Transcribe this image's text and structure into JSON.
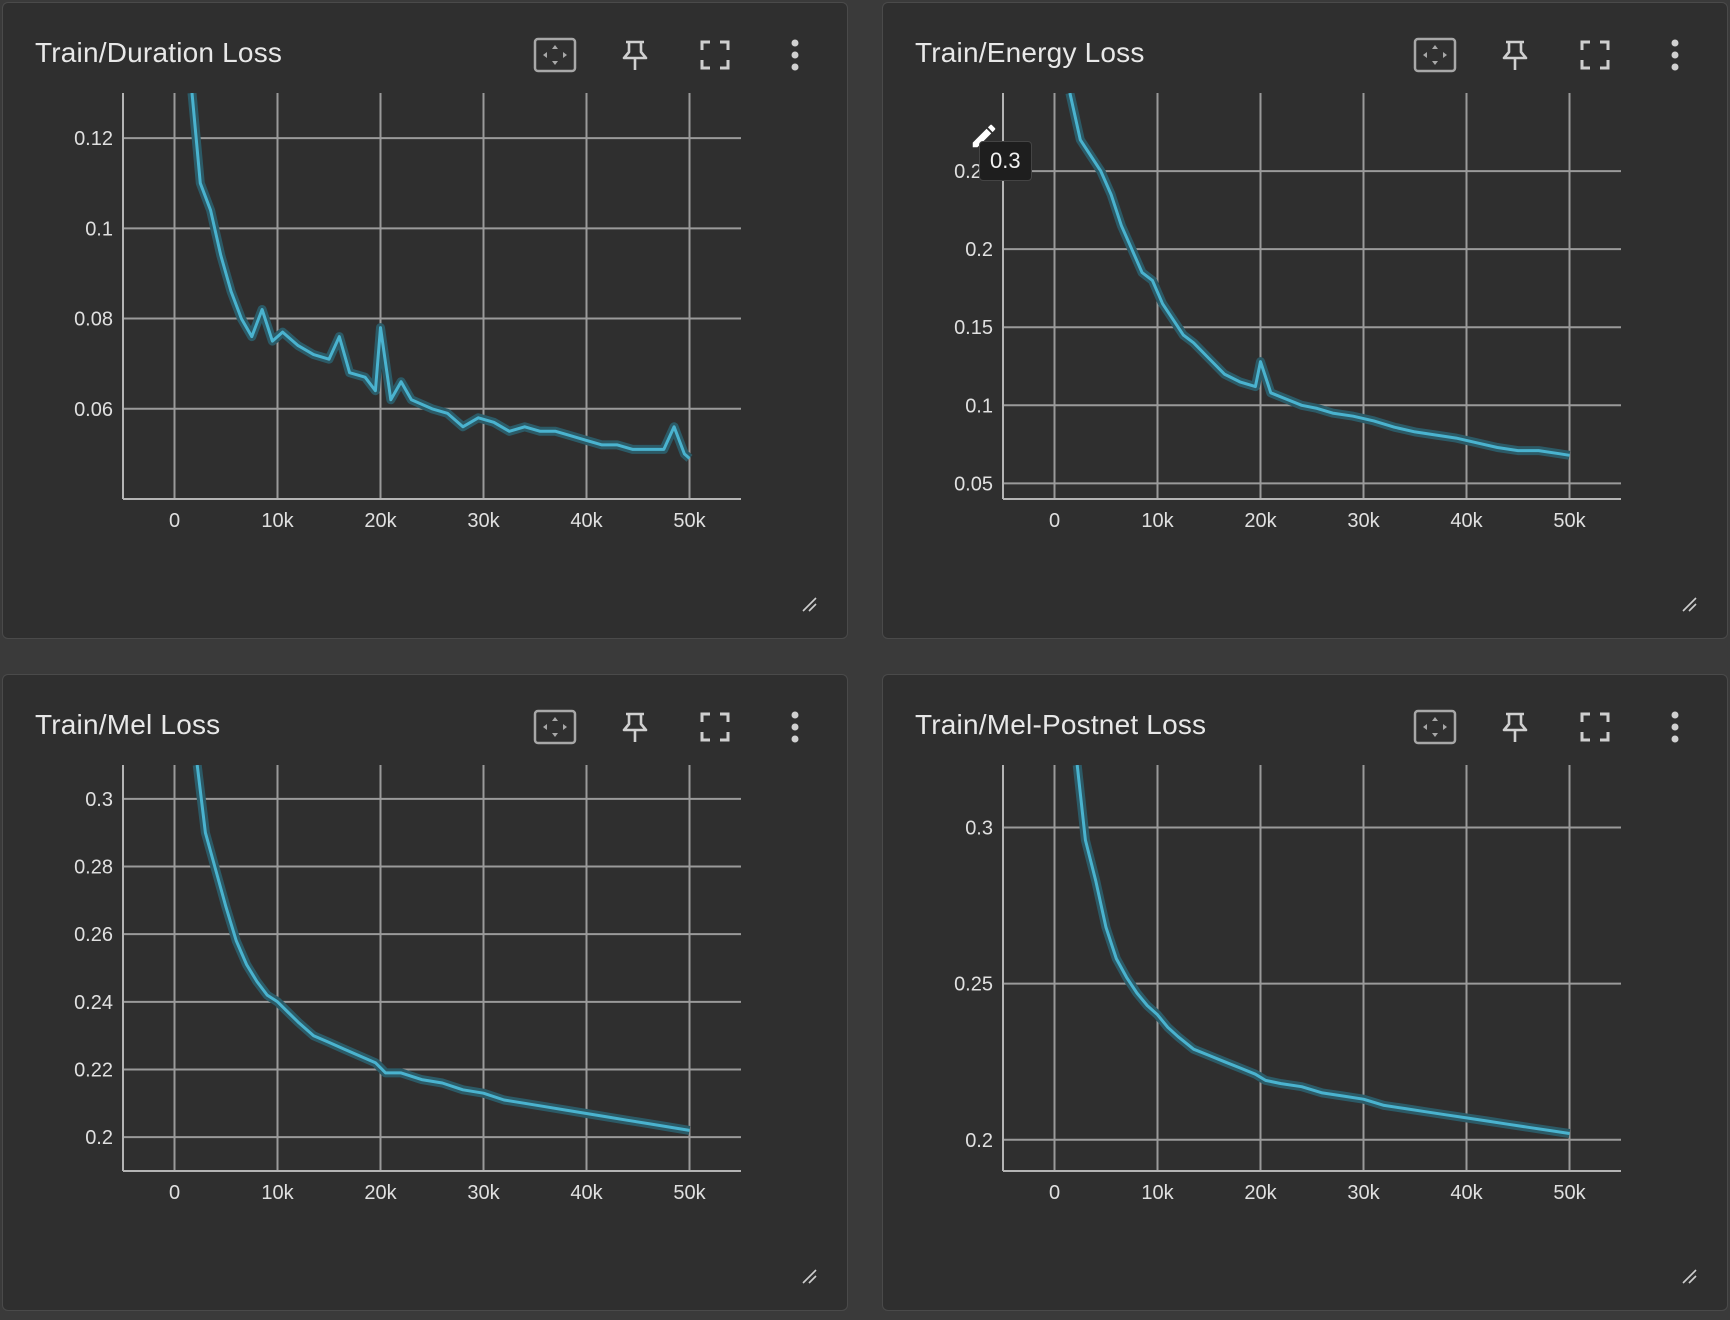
{
  "colors": {
    "line": "#4ab3cf",
    "line_raw": "#2c5a66",
    "grid": "#9a9a9a",
    "axis": "#b4b4b4",
    "tick_text": "#e0e0e0"
  },
  "icons": [
    "fit-to-domain-icon",
    "pin-icon",
    "fullscreen-icon",
    "more-vert-icon",
    "resize-handle-icon",
    "edit-icon"
  ],
  "cards": [
    {
      "title": "Train/Duration Loss"
    },
    {
      "title": "Train/Energy Loss"
    },
    {
      "title": "Train/Mel Loss"
    },
    {
      "title": "Train/Mel-Postnet Loss"
    }
  ],
  "tooltip": {
    "value": "0.3"
  },
  "chart_data": [
    {
      "type": "line",
      "title": "Train/Duration Loss",
      "xlabel": "",
      "ylabel": "",
      "xlim": [
        -5000,
        55000
      ],
      "ylim": [
        0.04,
        0.13
      ],
      "xticks": [
        0,
        10000,
        20000,
        30000,
        40000,
        50000
      ],
      "xtick_labels": [
        "0",
        "10k",
        "20k",
        "30k",
        "40k",
        "50k"
      ],
      "yticks": [
        0.06,
        0.08,
        0.1,
        0.12
      ],
      "ytick_labels": [
        "0.06",
        "0.08",
        "0.1",
        "0.12"
      ],
      "grid": true,
      "series": [
        {
          "x": [
            1700,
            2500,
            3500,
            4500,
            5500,
            6500,
            7500,
            8500,
            9500,
            10500,
            12000,
            13500,
            15000,
            16000,
            17000,
            18500,
            19500,
            20000,
            21000,
            22000,
            23000,
            24000,
            25000,
            26500,
            28000,
            29500,
            31000,
            32500,
            34000,
            35500,
            37000,
            38500,
            40000,
            41500,
            43000,
            44500,
            46000,
            47500,
            48500,
            49500,
            50000
          ],
          "y": [
            0.13,
            0.11,
            0.104,
            0.094,
            0.086,
            0.08,
            0.076,
            0.082,
            0.075,
            0.077,
            0.074,
            0.072,
            0.071,
            0.076,
            0.068,
            0.067,
            0.064,
            0.078,
            0.062,
            0.066,
            0.062,
            0.061,
            0.06,
            0.059,
            0.056,
            0.058,
            0.057,
            0.055,
            0.056,
            0.055,
            0.055,
            0.054,
            0.053,
            0.052,
            0.052,
            0.051,
            0.051,
            0.051,
            0.056,
            0.05,
            0.049
          ]
        }
      ]
    },
    {
      "type": "line",
      "title": "Train/Energy Loss",
      "xlabel": "",
      "ylabel": "",
      "xlim": [
        -5000,
        55000
      ],
      "ylim": [
        0.04,
        0.3
      ],
      "xticks": [
        0,
        10000,
        20000,
        30000,
        40000,
        50000
      ],
      "xtick_labels": [
        "0",
        "10k",
        "20k",
        "30k",
        "40k",
        "50k"
      ],
      "yticks": [
        0.05,
        0.1,
        0.15,
        0.2,
        0.25
      ],
      "ytick_labels": [
        "0.05",
        "0.1",
        "0.15",
        "0.2",
        "0.25"
      ],
      "grid": true,
      "series": [
        {
          "x": [
            1500,
            2500,
            3500,
            4500,
            5500,
            6500,
            7500,
            8500,
            9500,
            10500,
            11500,
            12500,
            13500,
            15000,
            16500,
            18000,
            19500,
            20000,
            21000,
            22500,
            24000,
            25500,
            27000,
            29000,
            31000,
            33000,
            35000,
            37000,
            39000,
            41000,
            43000,
            45000,
            47000,
            49000,
            50000
          ],
          "y": [
            0.3,
            0.27,
            0.26,
            0.25,
            0.235,
            0.215,
            0.2,
            0.185,
            0.18,
            0.165,
            0.155,
            0.145,
            0.14,
            0.13,
            0.12,
            0.115,
            0.112,
            0.128,
            0.108,
            0.104,
            0.1,
            0.098,
            0.095,
            0.093,
            0.09,
            0.086,
            0.083,
            0.081,
            0.079,
            0.076,
            0.073,
            0.071,
            0.071,
            0.069,
            0.068
          ]
        }
      ]
    },
    {
      "type": "line",
      "title": "Train/Mel Loss",
      "xlabel": "",
      "ylabel": "",
      "xlim": [
        -5000,
        55000
      ],
      "ylim": [
        0.19,
        0.31
      ],
      "xticks": [
        0,
        10000,
        20000,
        30000,
        40000,
        50000
      ],
      "xtick_labels": [
        "0",
        "10k",
        "20k",
        "30k",
        "40k",
        "50k"
      ],
      "yticks": [
        0.2,
        0.22,
        0.24,
        0.26,
        0.28,
        0.3
      ],
      "ytick_labels": [
        "0.2",
        "0.22",
        "0.24",
        "0.26",
        "0.28",
        "0.3"
      ],
      "grid": true,
      "series": [
        {
          "x": [
            2200,
            3000,
            4000,
            5000,
            6000,
            7000,
            8000,
            9000,
            10000,
            11000,
            12000,
            13500,
            15000,
            16500,
            18000,
            19500,
            20500,
            22000,
            24000,
            26000,
            28000,
            30000,
            32000,
            34000,
            36000,
            38000,
            40000,
            42000,
            44000,
            46000,
            48000,
            50000
          ],
          "y": [
            0.31,
            0.29,
            0.279,
            0.268,
            0.258,
            0.251,
            0.246,
            0.242,
            0.24,
            0.237,
            0.234,
            0.23,
            0.228,
            0.226,
            0.224,
            0.222,
            0.219,
            0.219,
            0.217,
            0.216,
            0.214,
            0.213,
            0.211,
            0.21,
            0.209,
            0.208,
            0.207,
            0.206,
            0.205,
            0.204,
            0.203,
            0.202
          ]
        }
      ]
    },
    {
      "type": "line",
      "title": "Train/Mel-Postnet Loss",
      "xlabel": "",
      "ylabel": "",
      "xlim": [
        -5000,
        55000
      ],
      "ylim": [
        0.19,
        0.32
      ],
      "xticks": [
        0,
        10000,
        20000,
        30000,
        40000,
        50000
      ],
      "xtick_labels": [
        "0",
        "10k",
        "20k",
        "30k",
        "40k",
        "50k"
      ],
      "yticks": [
        0.2,
        0.25,
        0.3
      ],
      "ytick_labels": [
        "0.2",
        "0.25",
        "0.3"
      ],
      "grid": true,
      "series": [
        {
          "x": [
            2200,
            3000,
            4000,
            5000,
            6000,
            7000,
            8000,
            9000,
            10000,
            11000,
            12000,
            13500,
            15000,
            16500,
            18000,
            19500,
            20500,
            22000,
            24000,
            26000,
            28000,
            30000,
            32000,
            34000,
            36000,
            38000,
            40000,
            42000,
            44000,
            46000,
            48000,
            50000
          ],
          "y": [
            0.32,
            0.296,
            0.283,
            0.268,
            0.258,
            0.252,
            0.247,
            0.243,
            0.24,
            0.236,
            0.233,
            0.229,
            0.227,
            0.225,
            0.223,
            0.221,
            0.219,
            0.218,
            0.217,
            0.215,
            0.214,
            0.213,
            0.211,
            0.21,
            0.209,
            0.208,
            0.207,
            0.206,
            0.205,
            0.204,
            0.203,
            0.202
          ]
        }
      ]
    }
  ]
}
